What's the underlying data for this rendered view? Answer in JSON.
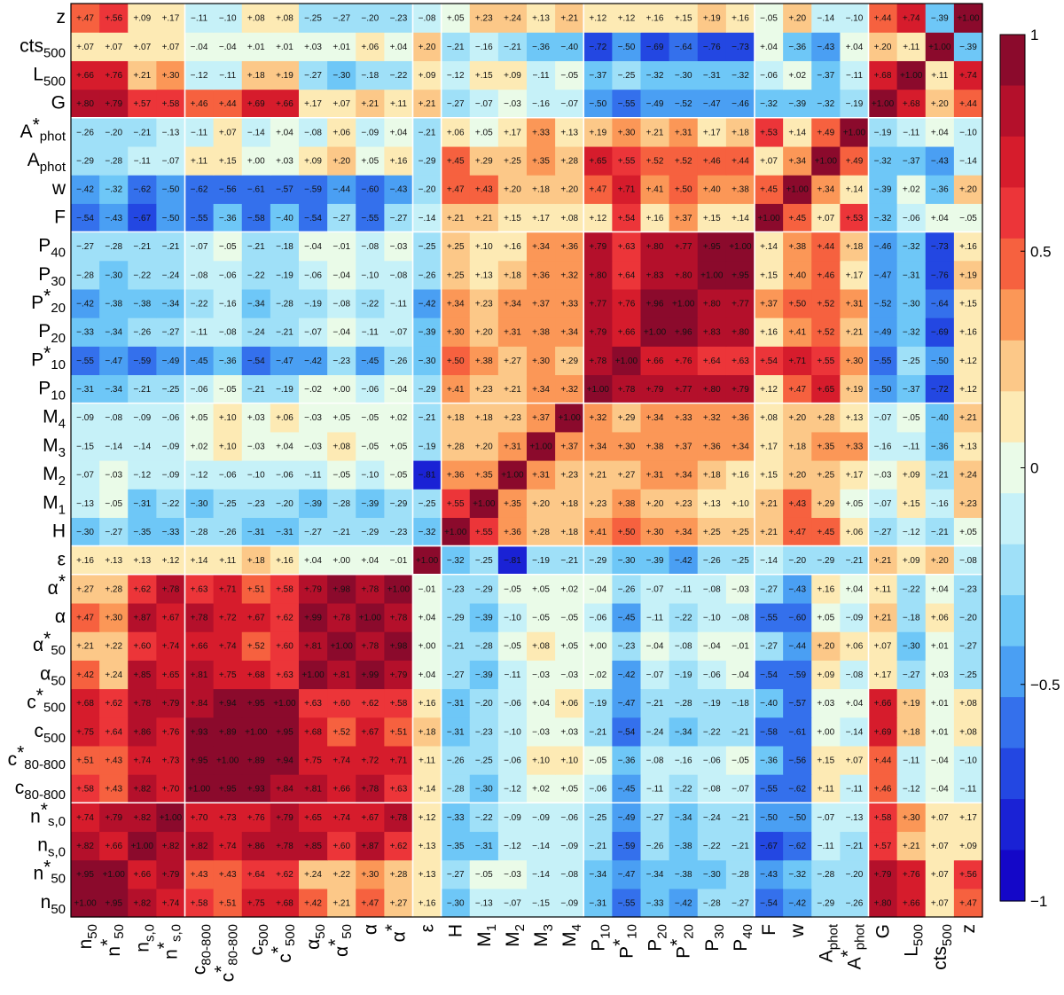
{
  "chart_data": {
    "type": "heatmap",
    "title": "",
    "xlabel": "",
    "ylabel": "",
    "labels": [
      {
        "base": "n",
        "sup": "",
        "sub": "50"
      },
      {
        "base": "n",
        "sup": "*",
        "sub": "50"
      },
      {
        "base": "n",
        "sup": "",
        "sub": "s,0"
      },
      {
        "base": "n",
        "sup": "*",
        "sub": "s,0"
      },
      {
        "base": "c",
        "sup": "",
        "sub": "80-800"
      },
      {
        "base": "c",
        "sup": "*",
        "sub": "80-800"
      },
      {
        "base": "c",
        "sup": "",
        "sub": "500"
      },
      {
        "base": "c",
        "sup": "*",
        "sub": "500"
      },
      {
        "base": "α",
        "sup": "",
        "sub": "50"
      },
      {
        "base": "α",
        "sup": "*",
        "sub": "50"
      },
      {
        "base": "α",
        "sup": "",
        "sub": ""
      },
      {
        "base": "α",
        "sup": "*",
        "sub": ""
      },
      {
        "base": "ε",
        "sup": "",
        "sub": ""
      },
      {
        "base": "H",
        "sup": "",
        "sub": ""
      },
      {
        "base": "M",
        "sup": "",
        "sub": "1"
      },
      {
        "base": "M",
        "sup": "",
        "sub": "2"
      },
      {
        "base": "M",
        "sup": "",
        "sub": "3"
      },
      {
        "base": "M",
        "sup": "",
        "sub": "4"
      },
      {
        "base": "P",
        "sup": "",
        "sub": "10"
      },
      {
        "base": "P",
        "sup": "*",
        "sub": "10"
      },
      {
        "base": "P",
        "sup": "",
        "sub": "20"
      },
      {
        "base": "P",
        "sup": "*",
        "sub": "20"
      },
      {
        "base": "P",
        "sup": "",
        "sub": "30"
      },
      {
        "base": "P",
        "sup": "",
        "sub": "40"
      },
      {
        "base": "F",
        "sup": "",
        "sub": ""
      },
      {
        "base": "w",
        "sup": "",
        "sub": ""
      },
      {
        "base": "A",
        "sup": "",
        "sub": "phot"
      },
      {
        "base": "A",
        "sup": "*",
        "sub": "phot"
      },
      {
        "base": "G",
        "sup": "",
        "sub": ""
      },
      {
        "base": "L",
        "sup": "",
        "sub": "500"
      },
      {
        "base": "cts",
        "sup": "",
        "sub": "500"
      },
      {
        "base": "z",
        "sup": "",
        "sub": ""
      }
    ],
    "matrix": [
      [
        1.0,
        0.95,
        0.82,
        0.74,
        0.58,
        0.51,
        0.75,
        0.68,
        0.42,
        0.21,
        0.47,
        0.27,
        0.16,
        -0.3,
        -0.13,
        -0.07,
        -0.15,
        -0.09,
        -0.31,
        -0.55,
        -0.33,
        -0.42,
        -0.28,
        -0.27,
        -0.54,
        -0.42,
        -0.29,
        -0.26,
        0.8,
        0.66,
        0.07,
        0.47
      ],
      [
        0.95,
        1.0,
        0.66,
        0.79,
        0.43,
        0.43,
        0.64,
        0.62,
        0.24,
        0.22,
        0.3,
        0.28,
        0.13,
        -0.27,
        -0.05,
        -0.03,
        -0.14,
        -0.08,
        -0.34,
        -0.47,
        -0.34,
        -0.38,
        -0.3,
        -0.28,
        -0.43,
        -0.32,
        -0.28,
        -0.2,
        0.79,
        0.76,
        0.07,
        0.56
      ],
      [
        0.82,
        0.66,
        1.0,
        0.82,
        0.82,
        0.74,
        0.86,
        0.78,
        0.85,
        0.6,
        0.87,
        0.62,
        0.13,
        -0.35,
        -0.31,
        -0.12,
        -0.14,
        -0.09,
        -0.21,
        -0.59,
        -0.26,
        -0.38,
        -0.22,
        -0.21,
        -0.67,
        -0.62,
        -0.11,
        -0.21,
        0.57,
        0.21,
        0.07,
        0.09
      ],
      [
        0.74,
        0.79,
        0.82,
        1.0,
        0.7,
        0.73,
        0.76,
        0.79,
        0.65,
        0.74,
        0.67,
        0.78,
        0.12,
        -0.33,
        -0.22,
        -0.09,
        -0.09,
        -0.06,
        -0.25,
        -0.49,
        -0.27,
        -0.34,
        -0.24,
        -0.21,
        -0.5,
        -0.5,
        -0.07,
        -0.13,
        0.58,
        0.3,
        0.07,
        0.17
      ],
      [
        0.58,
        0.43,
        0.82,
        0.7,
        1.0,
        0.95,
        0.93,
        0.84,
        0.81,
        0.66,
        0.78,
        0.63,
        0.14,
        -0.28,
        -0.3,
        -0.12,
        0.02,
        0.05,
        -0.06,
        -0.45,
        -0.11,
        -0.22,
        -0.08,
        -0.07,
        -0.55,
        -0.62,
        0.11,
        -0.11,
        0.46,
        -0.12,
        -0.04,
        -0.11
      ],
      [
        0.51,
        0.43,
        0.74,
        0.73,
        0.95,
        1.0,
        0.89,
        0.94,
        0.75,
        0.74,
        0.72,
        0.71,
        0.11,
        -0.26,
        -0.25,
        -0.06,
        0.1,
        0.1,
        -0.05,
        -0.36,
        -0.08,
        -0.16,
        -0.06,
        -0.05,
        -0.36,
        -0.56,
        0.15,
        0.07,
        0.44,
        -0.11,
        -0.04,
        -0.1
      ],
      [
        0.75,
        0.64,
        0.86,
        0.76,
        0.93,
        0.89,
        1.0,
        0.95,
        0.68,
        0.52,
        0.67,
        0.51,
        0.18,
        -0.31,
        -0.23,
        -0.1,
        -0.03,
        0.03,
        -0.21,
        -0.54,
        -0.24,
        -0.34,
        -0.22,
        -0.21,
        -0.58,
        -0.61,
        -0.0,
        -0.14,
        0.69,
        0.18,
        0.01,
        0.08
      ],
      [
        0.68,
        0.62,
        0.78,
        0.79,
        0.84,
        0.94,
        0.95,
        1.0,
        0.63,
        0.6,
        0.62,
        0.58,
        0.16,
        -0.31,
        -0.2,
        -0.06,
        0.04,
        0.06,
        -0.19,
        -0.47,
        -0.21,
        -0.28,
        -0.19,
        -0.18,
        -0.4,
        -0.57,
        0.03,
        0.04,
        0.66,
        0.19,
        0.01,
        0.08
      ],
      [
        0.42,
        0.24,
        0.85,
        0.65,
        0.81,
        0.75,
        0.68,
        0.63,
        1.0,
        0.81,
        0.99,
        0.79,
        0.04,
        -0.27,
        -0.39,
        -0.11,
        -0.03,
        -0.03,
        -0.02,
        -0.42,
        -0.07,
        -0.19,
        -0.06,
        -0.04,
        -0.54,
        -0.59,
        0.09,
        -0.08,
        0.17,
        -0.27,
        0.03,
        -0.25
      ],
      [
        0.21,
        0.22,
        0.6,
        0.74,
        0.66,
        0.74,
        0.52,
        0.6,
        0.81,
        1.0,
        0.78,
        0.98,
        0.0,
        -0.21,
        -0.28,
        -0.05,
        0.08,
        0.05,
        -0.0,
        -0.23,
        -0.04,
        -0.08,
        -0.04,
        -0.01,
        -0.27,
        -0.44,
        0.2,
        0.06,
        0.07,
        -0.3,
        0.01,
        -0.27
      ],
      [
        0.47,
        0.3,
        0.87,
        0.67,
        0.78,
        0.72,
        0.67,
        0.62,
        0.99,
        0.78,
        1.0,
        0.78,
        0.04,
        -0.29,
        -0.39,
        -0.1,
        -0.05,
        -0.05,
        -0.06,
        -0.45,
        -0.11,
        -0.22,
        -0.1,
        -0.08,
        -0.55,
        -0.6,
        0.05,
        -0.09,
        0.21,
        -0.18,
        0.06,
        -0.2
      ],
      [
        0.27,
        0.28,
        0.62,
        0.78,
        0.63,
        0.71,
        0.51,
        0.58,
        0.79,
        0.98,
        0.78,
        1.0,
        -0.01,
        -0.23,
        -0.29,
        -0.05,
        0.05,
        0.02,
        -0.04,
        -0.26,
        -0.07,
        -0.11,
        -0.08,
        -0.03,
        -0.27,
        -0.43,
        0.16,
        0.04,
        0.11,
        -0.22,
        0.04,
        -0.23
      ],
      [
        0.16,
        0.13,
        0.13,
        0.12,
        0.14,
        0.11,
        0.18,
        0.16,
        0.04,
        0.0,
        0.04,
        -0.01,
        1.0,
        -0.32,
        -0.25,
        -0.81,
        -0.19,
        -0.21,
        -0.29,
        -0.3,
        -0.39,
        -0.42,
        -0.26,
        -0.25,
        -0.14,
        -0.2,
        -0.29,
        -0.21,
        0.21,
        0.09,
        0.2,
        -0.08
      ],
      [
        -0.3,
        -0.27,
        -0.35,
        -0.33,
        -0.28,
        -0.26,
        -0.31,
        -0.31,
        -0.27,
        -0.21,
        -0.29,
        -0.23,
        -0.32,
        1.0,
        0.55,
        0.36,
        0.28,
        0.18,
        0.41,
        0.5,
        0.3,
        0.34,
        0.25,
        0.25,
        0.21,
        0.47,
        0.45,
        0.06,
        -0.27,
        -0.12,
        -0.21,
        0.05
      ],
      [
        -0.13,
        -0.05,
        -0.31,
        -0.22,
        -0.3,
        -0.25,
        -0.23,
        -0.2,
        -0.39,
        -0.28,
        -0.39,
        -0.29,
        -0.25,
        0.55,
        1.0,
        0.35,
        0.2,
        0.18,
        0.23,
        0.38,
        0.2,
        0.23,
        0.13,
        0.1,
        0.21,
        0.43,
        0.29,
        0.05,
        -0.07,
        0.15,
        -0.16,
        0.23
      ],
      [
        -0.07,
        -0.03,
        -0.12,
        -0.09,
        -0.12,
        -0.06,
        -0.1,
        -0.06,
        -0.11,
        -0.05,
        -0.1,
        -0.05,
        -0.81,
        0.36,
        0.35,
        1.0,
        0.31,
        0.23,
        0.21,
        0.27,
        0.31,
        0.34,
        0.18,
        0.16,
        0.15,
        0.2,
        0.25,
        0.17,
        -0.03,
        0.09,
        -0.21,
        0.24
      ],
      [
        -0.15,
        -0.14,
        -0.14,
        -0.09,
        0.02,
        0.1,
        -0.03,
        0.04,
        -0.03,
        0.08,
        -0.05,
        0.05,
        -0.19,
        0.28,
        0.2,
        0.31,
        1.0,
        0.37,
        0.34,
        0.3,
        0.38,
        0.37,
        0.36,
        0.34,
        0.17,
        0.18,
        0.35,
        0.33,
        -0.16,
        -0.11,
        -0.36,
        0.13
      ],
      [
        -0.09,
        -0.08,
        -0.09,
        -0.06,
        0.05,
        0.1,
        0.03,
        0.06,
        -0.03,
        0.05,
        -0.05,
        0.02,
        -0.21,
        0.18,
        0.18,
        0.23,
        0.37,
        1.0,
        0.32,
        0.29,
        0.34,
        0.33,
        0.32,
        0.36,
        0.08,
        0.2,
        0.28,
        0.13,
        -0.07,
        -0.05,
        -0.4,
        0.21
      ],
      [
        -0.31,
        -0.34,
        -0.21,
        -0.25,
        -0.06,
        -0.05,
        -0.21,
        -0.19,
        -0.02,
        -0.0,
        -0.06,
        -0.04,
        -0.29,
        0.41,
        0.23,
        0.21,
        0.34,
        0.32,
        1.0,
        0.78,
        0.79,
        0.77,
        0.8,
        0.79,
        0.12,
        0.47,
        0.65,
        0.19,
        -0.5,
        -0.37,
        -0.72,
        0.12
      ],
      [
        -0.55,
        -0.47,
        -0.59,
        -0.49,
        -0.45,
        -0.36,
        -0.54,
        -0.47,
        -0.42,
        -0.23,
        -0.45,
        -0.26,
        -0.3,
        0.5,
        0.38,
        0.27,
        0.3,
        0.29,
        0.78,
        1.0,
        0.66,
        0.76,
        0.64,
        0.63,
        0.54,
        0.71,
        0.55,
        0.3,
        -0.55,
        -0.25,
        -0.5,
        0.12
      ],
      [
        -0.33,
        -0.34,
        -0.26,
        -0.27,
        -0.11,
        -0.08,
        -0.24,
        -0.21,
        -0.07,
        -0.04,
        -0.11,
        -0.07,
        -0.39,
        0.3,
        0.2,
        0.31,
        0.38,
        0.34,
        0.79,
        0.66,
        1.0,
        0.96,
        0.83,
        0.8,
        0.16,
        0.41,
        0.52,
        0.21,
        -0.49,
        -0.32,
        -0.69,
        0.16
      ],
      [
        -0.42,
        -0.38,
        -0.38,
        -0.34,
        -0.22,
        -0.16,
        -0.34,
        -0.28,
        -0.19,
        -0.08,
        -0.22,
        -0.11,
        -0.42,
        0.34,
        0.23,
        0.34,
        0.37,
        0.33,
        0.77,
        0.76,
        0.96,
        1.0,
        0.8,
        0.77,
        0.37,
        0.5,
        0.52,
        0.31,
        -0.52,
        -0.3,
        -0.64,
        0.15
      ],
      [
        -0.28,
        -0.3,
        -0.22,
        -0.24,
        -0.08,
        -0.06,
        -0.22,
        -0.19,
        -0.06,
        -0.04,
        -0.1,
        -0.08,
        -0.26,
        0.25,
        0.13,
        0.18,
        0.36,
        0.32,
        0.8,
        0.64,
        0.83,
        0.8,
        1.0,
        0.95,
        0.15,
        0.4,
        0.46,
        0.17,
        -0.47,
        -0.31,
        -0.76,
        0.19
      ],
      [
        -0.27,
        -0.28,
        -0.21,
        -0.21,
        -0.07,
        -0.05,
        -0.21,
        -0.18,
        -0.04,
        -0.01,
        -0.08,
        -0.03,
        -0.25,
        0.25,
        0.1,
        0.16,
        0.34,
        0.36,
        0.79,
        0.63,
        0.8,
        0.77,
        0.95,
        1.0,
        0.14,
        0.38,
        0.44,
        0.18,
        -0.46,
        -0.32,
        -0.73,
        0.16
      ],
      [
        -0.54,
        -0.43,
        -0.67,
        -0.5,
        -0.55,
        -0.36,
        -0.58,
        -0.4,
        -0.54,
        -0.27,
        -0.55,
        -0.27,
        -0.14,
        0.21,
        0.21,
        0.15,
        0.17,
        0.08,
        0.12,
        0.54,
        0.16,
        0.37,
        0.15,
        0.14,
        1.0,
        0.45,
        0.07,
        0.53,
        -0.32,
        -0.06,
        0.04,
        -0.05
      ],
      [
        -0.42,
        -0.32,
        -0.62,
        -0.5,
        -0.62,
        -0.56,
        -0.61,
        -0.57,
        -0.59,
        -0.44,
        -0.6,
        -0.43,
        -0.2,
        0.47,
        0.43,
        0.2,
        0.18,
        0.2,
        0.47,
        0.71,
        0.41,
        0.5,
        0.4,
        0.38,
        0.45,
        1.0,
        0.34,
        0.14,
        -0.39,
        0.02,
        -0.36,
        0.2
      ],
      [
        -0.29,
        -0.28,
        -0.11,
        -0.07,
        0.11,
        0.15,
        -0.0,
        0.03,
        0.09,
        0.2,
        0.05,
        0.16,
        -0.29,
        0.45,
        0.29,
        0.25,
        0.35,
        0.28,
        0.65,
        0.55,
        0.52,
        0.52,
        0.46,
        0.44,
        0.07,
        0.34,
        1.0,
        0.49,
        -0.32,
        -0.37,
        -0.43,
        -0.14
      ],
      [
        -0.26,
        -0.2,
        -0.21,
        -0.13,
        -0.11,
        0.07,
        -0.14,
        0.04,
        -0.08,
        0.06,
        -0.09,
        0.04,
        -0.21,
        0.06,
        0.05,
        0.17,
        0.33,
        0.13,
        0.19,
        0.3,
        0.21,
        0.31,
        0.17,
        0.18,
        0.53,
        0.14,
        0.49,
        1.0,
        -0.19,
        -0.11,
        0.04,
        -0.1
      ],
      [
        0.8,
        0.79,
        0.57,
        0.58,
        0.46,
        0.44,
        0.69,
        0.66,
        0.17,
        0.07,
        0.21,
        0.11,
        0.21,
        -0.27,
        -0.07,
        -0.03,
        -0.16,
        -0.07,
        -0.5,
        -0.55,
        -0.49,
        -0.52,
        -0.47,
        -0.46,
        -0.32,
        -0.39,
        -0.32,
        -0.19,
        1.0,
        0.68,
        0.2,
        0.44
      ],
      [
        0.66,
        0.76,
        0.21,
        0.3,
        -0.12,
        -0.11,
        0.18,
        0.19,
        -0.27,
        -0.3,
        -0.18,
        -0.22,
        0.09,
        -0.12,
        0.15,
        0.09,
        -0.11,
        -0.05,
        -0.37,
        -0.25,
        -0.32,
        -0.3,
        -0.31,
        -0.32,
        -0.06,
        0.02,
        -0.37,
        -0.11,
        0.68,
        1.0,
        0.11,
        0.74
      ],
      [
        0.07,
        0.07,
        0.07,
        0.07,
        -0.04,
        -0.04,
        0.01,
        0.01,
        0.03,
        0.01,
        0.06,
        0.04,
        0.2,
        -0.21,
        -0.16,
        -0.21,
        -0.36,
        -0.4,
        -0.72,
        -0.5,
        -0.69,
        -0.64,
        -0.76,
        -0.73,
        0.04,
        -0.36,
        -0.43,
        0.04,
        0.2,
        0.11,
        1.0,
        -0.39
      ],
      [
        0.47,
        0.56,
        0.09,
        0.17,
        -0.11,
        -0.1,
        0.08,
        0.08,
        -0.25,
        -0.27,
        -0.2,
        -0.23,
        -0.08,
        0.05,
        0.23,
        0.24,
        0.13,
        0.21,
        0.12,
        0.12,
        0.16,
        0.15,
        0.19,
        0.16,
        -0.05,
        0.2,
        -0.14,
        -0.1,
        0.44,
        0.74,
        -0.39,
        1.0
      ]
    ],
    "colorbar": {
      "range": [
        -1,
        1
      ],
      "tick_labels": [
        "1",
        "0.5",
        "0",
        "−0.5",
        "−1"
      ],
      "colors": [
        "#8b0a2c",
        "#b4102b",
        "#d61c2c",
        "#ec3539",
        "#f6613f",
        "#fb9757",
        "#fcc888",
        "#fdeab4",
        "#eafbe8",
        "#c6f1f8",
        "#9fe0f8",
        "#6ec7f7",
        "#4a9ff3",
        "#3470ec",
        "#2347e2",
        "#1a22d5",
        "#1407c8"
      ]
    }
  }
}
